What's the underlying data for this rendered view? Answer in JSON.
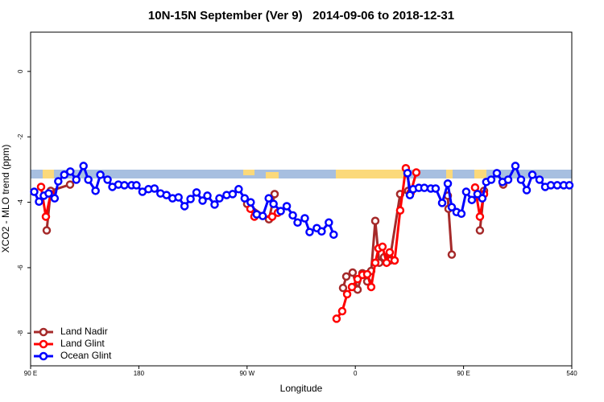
{
  "chart_data": {
    "type": "line",
    "title": "10N-15N September (Ver 9)   2014-09-06 to 2018-12-31",
    "x_label": "Longitude",
    "y_label": "XCO2 - MLO trend (ppm)",
    "xlim": [
      90,
      540
    ],
    "ylim": [
      -9,
      1.2
    ],
    "xticks": [
      {
        "value": 90,
        "label": "90 E"
      },
      180,
      {
        "value": 270,
        "label": "90 W"
      },
      {
        "value": 360,
        "label": "0"
      },
      {
        "value": 450,
        "label": "90 E"
      },
      540
    ],
    "yticks": [
      0,
      -2,
      -4,
      -6,
      -8
    ],
    "legend": "bottom-left",
    "series": [
      {
        "name": "Land Nadir",
        "color": "#a52a2a",
        "x": [
          103.4,
          106.7,
          122.8,
          null,
          270.1,
          288.2,
          292.9,
          null,
          349.8,
          352.5,
          357.8,
          361.9,
          365.9,
          369.9,
          373.2,
          376.6,
          379.9,
          383.9,
          388.6,
          397.3,
          404.0,
          null,
          436.9,
          437.5,
          440.2,
          null,
          463.6,
          467.0,
          null,
          483.0
        ],
        "values": [
          -4.86,
          -3.65,
          -3.46,
          null,
          -4.05,
          -4.52,
          -3.75,
          null,
          -6.62,
          -6.27,
          -6.15,
          -6.67,
          -6.17,
          -6.42,
          -6.1,
          -4.57,
          -5.85,
          -5.68,
          -5.78,
          -3.75,
          -3.65,
          null,
          -3.8,
          -4.2,
          -5.6,
          null,
          -4.86,
          -3.65,
          null,
          -3.46
        ]
      },
      {
        "name": "Land Glint",
        "color": "#ff0000",
        "x": [
          98.7,
          102.7,
          106.7,
          null,
          272.8,
          276.1,
          290.9,
          295.6,
          null,
          344.4,
          349.1,
          353.2,
          357.2,
          361.9,
          365.9,
          369.9,
          373.2,
          376.6,
          379.3,
          382.6,
          386.0,
          388.6,
          392.7,
          397.3,
          402.0,
          406.1,
          410.7,
          null,
          459.6,
          463.6,
          467.0
        ],
        "values": [
          -3.53,
          -4.44,
          -3.75,
          null,
          -4.2,
          -4.44,
          -4.44,
          -4.32,
          null,
          -7.56,
          -7.33,
          -6.81,
          -6.59,
          -6.35,
          -6.22,
          -6.2,
          -6.59,
          -5.85,
          -5.41,
          -5.36,
          -5.85,
          -5.53,
          -5.78,
          -4.25,
          -2.96,
          -3.7,
          -3.09,
          null,
          -3.55,
          -4.44,
          -3.75
        ]
      },
      {
        "name": "Ocean Glint",
        "color": "#0000ff",
        "x": [
          93,
          97,
          101,
          105,
          110,
          113,
          118,
          123,
          128,
          134,
          138,
          144,
          148,
          154,
          158,
          163,
          168,
          174,
          178,
          183,
          188,
          193,
          198,
          203,
          208,
          213,
          218,
          223,
          228,
          233,
          237,
          243,
          247,
          253,
          258,
          263,
          268,
          273,
          278,
          283,
          288,
          292,
          298,
          303,
          308,
          312,
          318,
          322,
          328,
          332,
          338,
          342,
          null,
          403.4,
          405.4,
          408.1,
          412.8,
          417.4,
          422.8,
          426.8,
          432.2,
          436.9,
          440.2,
          444.2,
          448.2,
          452.2,
          456.9,
          461.6,
          465.6,
          468.9,
          473.0,
          477.7,
          482.4,
          487.1,
          493.1,
          497.8,
          502.5,
          507.2,
          513.2,
          517.9,
          522.6,
          527.9,
          533.3,
          538.0
        ],
        "values": [
          -3.68,
          -3.98,
          -3.8,
          -3.73,
          -3.88,
          -3.36,
          -3.16,
          -3.06,
          -3.31,
          -2.89,
          -3.31,
          -3.65,
          -3.16,
          -3.31,
          -3.53,
          -3.46,
          -3.48,
          -3.48,
          -3.48,
          -3.68,
          -3.6,
          -3.58,
          -3.73,
          -3.78,
          -3.88,
          -3.85,
          -4.12,
          -3.9,
          -3.7,
          -3.95,
          -3.8,
          -4.07,
          -3.88,
          -3.78,
          -3.75,
          -3.6,
          -3.88,
          -4.0,
          -4.37,
          -4.42,
          -3.88,
          -4.05,
          -4.27,
          -4.12,
          -4.4,
          -4.62,
          -4.49,
          -4.91,
          -4.79,
          -4.89,
          -4.62,
          -4.99,
          null,
          -3.11,
          -3.78,
          -3.6,
          -3.56,
          -3.56,
          -3.58,
          -3.58,
          -4.02,
          -3.43,
          -4.15,
          -4.3,
          -4.35,
          -3.68,
          -3.93,
          -3.75,
          -3.88,
          -3.38,
          -3.31,
          -3.11,
          -3.38,
          -3.31,
          -2.89,
          -3.31,
          -3.63,
          -3.16,
          -3.31,
          -3.53,
          -3.48,
          -3.48,
          -3.48,
          -3.48
        ]
      }
    ]
  }
}
